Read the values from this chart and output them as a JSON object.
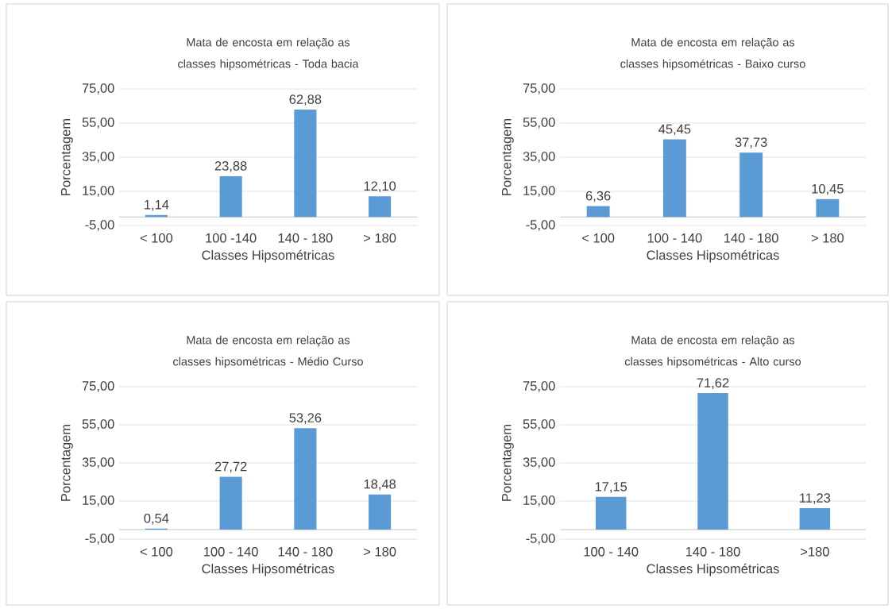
{
  "chart_data": [
    {
      "type": "bar",
      "title": "Mata de encosta em relação as classes hipsométricas - Toda bacia",
      "xlabel": "Classes Hipsométricas",
      "ylabel": "Porcentagem",
      "categories": [
        "< 100",
        "100 -140",
        "140 - 180",
        "> 180"
      ],
      "values": [
        1.14,
        23.88,
        62.88,
        12.1
      ],
      "value_labels": [
        "1,14",
        "23,88",
        "62,88",
        "12,10"
      ],
      "color": "#5b9bd5",
      "ylim": [
        -5,
        75
      ],
      "yticks": [
        {
          "value": -5,
          "label": "-5,00"
        },
        {
          "value": 15,
          "label": "15,00"
        },
        {
          "value": 35,
          "label": "35,00"
        },
        {
          "value": 55,
          "label": "55,00"
        },
        {
          "value": 75,
          "label": "75,00"
        }
      ],
      "grid": "y"
    },
    {
      "type": "bar",
      "title": "Mata de encosta em relação as classes hipsométricas - Baixo curso",
      "xlabel": "Classes Hipsométricas",
      "ylabel": "Porcentagem",
      "categories": [
        "< 100",
        "100 - 140",
        "140 - 180",
        "> 180"
      ],
      "values": [
        6.36,
        45.45,
        37.73,
        10.45
      ],
      "value_labels": [
        "6,36",
        "45,45",
        "37,73",
        "10,45"
      ],
      "color": "#5b9bd5",
      "ylim": [
        -5,
        75
      ],
      "yticks": [
        {
          "value": -5,
          "label": "-5,00"
        },
        {
          "value": 15,
          "label": "15,00"
        },
        {
          "value": 35,
          "label": "35,00"
        },
        {
          "value": 55,
          "label": "55,00"
        },
        {
          "value": 75,
          "label": "75,00"
        }
      ],
      "grid": "y"
    },
    {
      "type": "bar",
      "title": "Mata de encosta em relação as classes hipsométricas - Médio Curso",
      "xlabel": "Classes Hipsométricas",
      "ylabel": "Porcentagem",
      "categories": [
        "< 100",
        "100 - 140",
        "140 - 180",
        "> 180"
      ],
      "values": [
        0.54,
        27.72,
        53.26,
        18.48
      ],
      "value_labels": [
        "0,54",
        "27,72",
        "53,26",
        "18,48"
      ],
      "color": "#5b9bd5",
      "ylim": [
        -5,
        75
      ],
      "yticks": [
        {
          "value": -5,
          "label": "-5,00"
        },
        {
          "value": 15,
          "label": "15,00"
        },
        {
          "value": 35,
          "label": "35,00"
        },
        {
          "value": 55,
          "label": "55,00"
        },
        {
          "value": 75,
          "label": "75,00"
        }
      ],
      "grid": "y"
    },
    {
      "type": "bar",
      "title": "Mata de encosta em relação as classes hipsométricas - Alto curso",
      "xlabel": "Classes Hipsométricas",
      "ylabel": "Porcentagem",
      "categories": [
        "100 - 140",
        "140 - 180",
        ">180"
      ],
      "values": [
        17.15,
        71.62,
        11.23
      ],
      "value_labels": [
        "17,15",
        "71,62",
        "11,23"
      ],
      "color": "#5b9bd5",
      "ylim": [
        -5,
        75
      ],
      "yticks": [
        {
          "value": -5,
          "label": "-5,00"
        },
        {
          "value": 15,
          "label": "15,00"
        },
        {
          "value": 35,
          "label": "35,00"
        },
        {
          "value": 55,
          "label": "55,00"
        },
        {
          "value": 75,
          "label": "75,00"
        }
      ],
      "grid": "y"
    }
  ]
}
